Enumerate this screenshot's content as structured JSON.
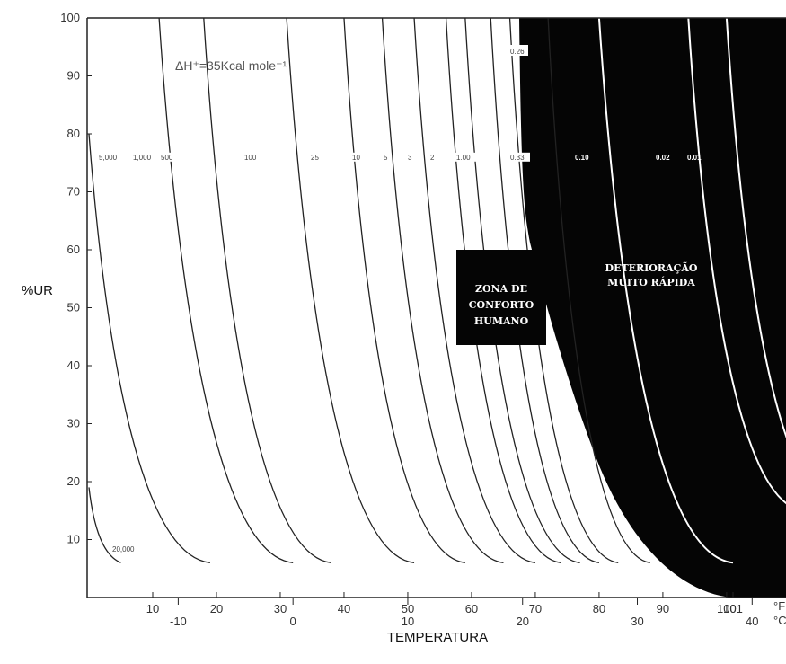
{
  "chart_data": {
    "type": "line",
    "xlabel": "TEMPERATURA",
    "ylabel": "%UR",
    "ylim": [
      0,
      100
    ],
    "y_ticks": [
      "10",
      "20",
      "30",
      "40",
      "50",
      "60",
      "70",
      "80",
      "90",
      "100"
    ],
    "x_ticks_f": [
      "10",
      "20",
      "30",
      "40",
      "50",
      "60",
      "70",
      "80",
      "90",
      "100",
      "101"
    ],
    "x_ticks_c": [
      "-10",
      "0",
      "10",
      "20",
      "30",
      "40"
    ],
    "x_unit_top": "°F",
    "x_unit_bottom": "°C",
    "grid": false,
    "annotation": "ΔH⁺=35Kcal mole⁻¹",
    "isoperm_labels": [
      "5,000",
      "1,000",
      "500",
      "100",
      "25",
      "10",
      "5",
      "3",
      "2",
      "1.00",
      "0.33",
      "0.10",
      "0.02",
      "0.01"
    ],
    "top_label": "0.26",
    "bottom_label": "20,000",
    "zones": [
      {
        "name": "ZONA DE CONFORTO HUMANO",
        "lines": [
          "ZONA DE",
          "CONFORTO",
          "HUMANO"
        ],
        "t_min_f": 65,
        "t_max_f": 75,
        "rh_min": 40,
        "rh_max": 60
      },
      {
        "name": "DETERIORAÇÃO MUITO RÁPIDA",
        "lines": [
          "DETERIORAÇÃO",
          "MUITO RÁPIDA"
        ]
      }
    ],
    "curves": [
      {
        "name": "20,000",
        "x_f": [
          0,
          5
        ],
        "rh": [
          19,
          6
        ]
      },
      {
        "name": "5,000",
        "x_f": [
          0,
          19
        ],
        "rh": [
          80,
          6
        ]
      },
      {
        "name": "1,000",
        "x_f": [
          11,
          32
        ],
        "rh": [
          100,
          6
        ]
      },
      {
        "name": "500",
        "x_f": [
          18,
          38
        ],
        "rh": [
          100,
          6
        ]
      },
      {
        "name": "100",
        "x_f": [
          31,
          51
        ],
        "rh": [
          100,
          6
        ]
      },
      {
        "name": "25",
        "x_f": [
          40,
          59
        ],
        "rh": [
          100,
          6
        ]
      },
      {
        "name": "10",
        "x_f": [
          46,
          65
        ],
        "rh": [
          100,
          6
        ]
      },
      {
        "name": "5",
        "x_f": [
          51,
          70
        ],
        "rh": [
          100,
          6
        ]
      },
      {
        "name": "3",
        "x_f": [
          56,
          74
        ],
        "rh": [
          100,
          6
        ]
      },
      {
        "name": "2",
        "x_f": [
          59,
          77
        ],
        "rh": [
          100,
          6
        ]
      },
      {
        "name": "1.00",
        "x_f": [
          63,
          80
        ],
        "rh": [
          100,
          6
        ]
      },
      {
        "name": "0.33",
        "x_f": [
          66,
          83
        ],
        "rh": [
          100,
          6
        ]
      },
      {
        "name": "0.26",
        "x_f": [
          72,
          88
        ],
        "rh": [
          100,
          6
        ]
      },
      {
        "name": "0.10",
        "x_f": [
          80,
          101
        ],
        "rh": [
          100,
          6
        ]
      },
      {
        "name": "0.02",
        "x_f": [
          94,
          112
        ],
        "rh": [
          100,
          15
        ]
      },
      {
        "name": "0.01",
        "x_f": [
          100,
          118
        ],
        "rh": [
          100,
          15
        ]
      }
    ]
  }
}
